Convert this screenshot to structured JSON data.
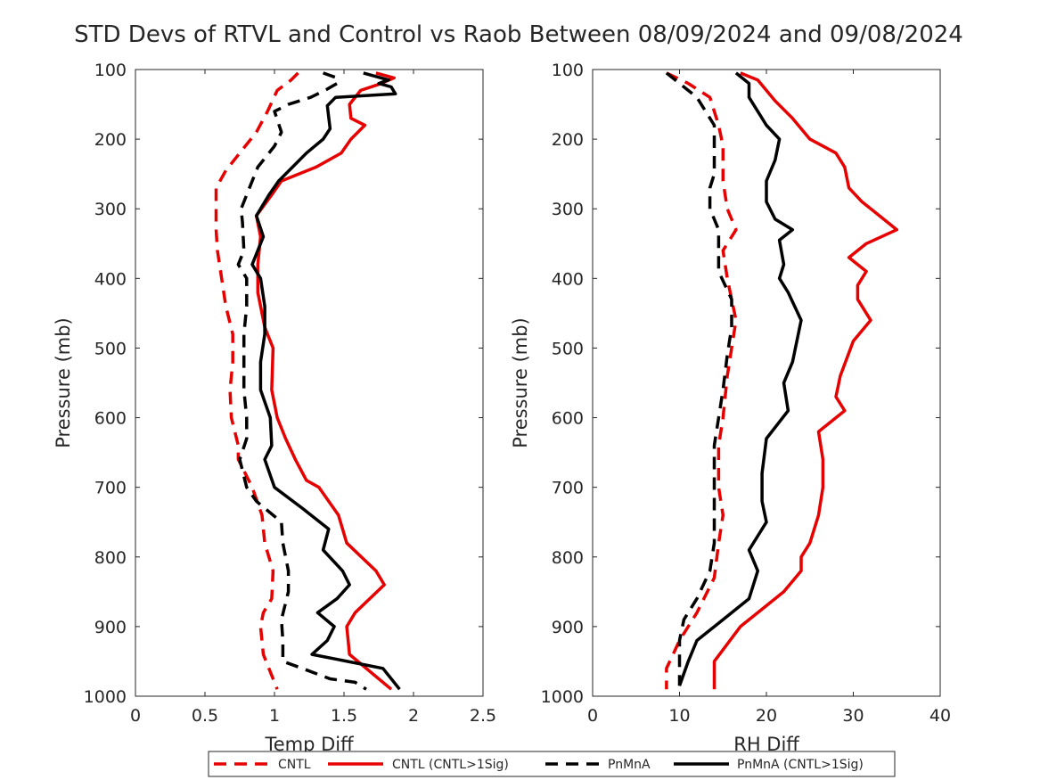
{
  "title": "STD Devs of RTVL and Control vs Raob Between 08/09/2024 and 09/08/2024",
  "legend": {
    "placement": "bottom",
    "entries": [
      {
        "label": "CNTL",
        "color": "#e60000",
        "dash": true
      },
      {
        "label": "CNTL (CNTL>1Sig)",
        "color": "#e60000",
        "dash": false
      },
      {
        "label": "PnMnA",
        "color": "#000000",
        "dash": true
      },
      {
        "label": "PnMnA (CNTL>1Sig)",
        "color": "#000000",
        "dash": false
      }
    ]
  },
  "chart_data": [
    {
      "type": "line",
      "xlabel": "Temp Diff",
      "ylabel": "Pressure (mb)",
      "xlim": [
        0,
        2.5
      ],
      "ylim": [
        100,
        1000
      ],
      "y_reversed": true,
      "grid": false,
      "xticks": [
        "0",
        "0.5",
        "1",
        "1.5",
        "2",
        "2.5"
      ],
      "xtick_values": [
        0,
        0.5,
        1,
        1.5,
        2,
        2.5
      ],
      "yticks": [
        "100",
        "200",
        "300",
        "400",
        "500",
        "600",
        "700",
        "800",
        "900",
        "1000"
      ],
      "ytick_values": [
        100,
        200,
        300,
        400,
        500,
        600,
        700,
        800,
        900,
        1000
      ],
      "series": [
        {
          "name": "CNTL",
          "color": "#e60000",
          "dash": true,
          "points": [
            [
              1.17,
              105
            ],
            [
              1.12,
              115
            ],
            [
              1.02,
              130
            ],
            [
              0.95,
              160
            ],
            [
              0.87,
              190
            ],
            [
              0.77,
              215
            ],
            [
              0.65,
              245
            ],
            [
              0.58,
              270
            ],
            [
              0.58,
              300
            ],
            [
              0.58,
              330
            ],
            [
              0.59,
              360
            ],
            [
              0.62,
              400
            ],
            [
              0.65,
              440
            ],
            [
              0.7,
              480
            ],
            [
              0.7,
              520
            ],
            [
              0.68,
              560
            ],
            [
              0.69,
              600
            ],
            [
              0.74,
              640
            ],
            [
              0.74,
              660
            ],
            [
              0.84,
              700
            ],
            [
              0.91,
              740
            ],
            [
              0.93,
              780
            ],
            [
              0.99,
              820
            ],
            [
              0.98,
              860
            ],
            [
              0.92,
              880
            ],
            [
              0.9,
              900
            ],
            [
              0.92,
              940
            ],
            [
              1.02,
              990
            ]
          ]
        },
        {
          "name": "CNTL (CNTL>1Sig)",
          "color": "#e60000",
          "dash": false,
          "points": [
            [
              1.73,
              105
            ],
            [
              1.86,
              112
            ],
            [
              1.74,
              122
            ],
            [
              1.62,
              130
            ],
            [
              1.54,
              150
            ],
            [
              1.55,
              170
            ],
            [
              1.65,
              180
            ],
            [
              1.55,
              200
            ],
            [
              1.48,
              220
            ],
            [
              1.3,
              240
            ],
            [
              1.05,
              260
            ],
            [
              0.98,
              280
            ],
            [
              0.87,
              310
            ],
            [
              0.9,
              340
            ],
            [
              0.88,
              380
            ],
            [
              0.88,
              420
            ],
            [
              0.93,
              470
            ],
            [
              0.99,
              500
            ],
            [
              0.98,
              560
            ],
            [
              1.02,
              600
            ],
            [
              1.08,
              630
            ],
            [
              1.15,
              660
            ],
            [
              1.23,
              690
            ],
            [
              1.32,
              700
            ],
            [
              1.46,
              740
            ],
            [
              1.52,
              780
            ],
            [
              1.73,
              820
            ],
            [
              1.79,
              840
            ],
            [
              1.58,
              880
            ],
            [
              1.52,
              900
            ],
            [
              1.54,
              940
            ],
            [
              1.84,
              990
            ]
          ]
        },
        {
          "name": "PnMnA",
          "color": "#000000",
          "dash": true,
          "points": [
            [
              1.35,
              105
            ],
            [
              1.45,
              112
            ],
            [
              1.45,
              120
            ],
            [
              1.38,
              128
            ],
            [
              1.26,
              140
            ],
            [
              1.1,
              150
            ],
            [
              1.0,
              160
            ],
            [
              1.05,
              190
            ],
            [
              1.0,
              210
            ],
            [
              0.88,
              240
            ],
            [
              0.82,
              270
            ],
            [
              0.76,
              300
            ],
            [
              0.77,
              320
            ],
            [
              0.78,
              360
            ],
            [
              0.74,
              380
            ],
            [
              0.8,
              400
            ],
            [
              0.8,
              440
            ],
            [
              0.78,
              480
            ],
            [
              0.78,
              520
            ],
            [
              0.78,
              560
            ],
            [
              0.8,
              600
            ],
            [
              0.8,
              630
            ],
            [
              0.75,
              660
            ],
            [
              0.8,
              700
            ],
            [
              0.87,
              720
            ],
            [
              1.05,
              750
            ],
            [
              1.06,
              780
            ],
            [
              1.1,
              820
            ],
            [
              1.1,
              850
            ],
            [
              1.05,
              890
            ],
            [
              1.06,
              920
            ],
            [
              1.06,
              950
            ],
            [
              1.2,
              960
            ],
            [
              1.4,
              975
            ],
            [
              1.58,
              980
            ],
            [
              1.66,
              990
            ]
          ]
        },
        {
          "name": "PnMnA (CNTL>1Sig)",
          "color": "#000000",
          "dash": false,
          "points": [
            [
              1.64,
              105
            ],
            [
              1.82,
              115
            ],
            [
              1.75,
              120
            ],
            [
              1.84,
              125
            ],
            [
              1.87,
              135
            ],
            [
              1.44,
              140
            ],
            [
              1.38,
              152
            ],
            [
              1.4,
              185
            ],
            [
              1.35,
              200
            ],
            [
              1.23,
              220
            ],
            [
              1.13,
              240
            ],
            [
              1.03,
              260
            ],
            [
              0.96,
              280
            ],
            [
              0.87,
              310
            ],
            [
              0.92,
              340
            ],
            [
              0.84,
              380
            ],
            [
              0.9,
              400
            ],
            [
              0.93,
              440
            ],
            [
              0.93,
              480
            ],
            [
              0.9,
              520
            ],
            [
              0.9,
              560
            ],
            [
              0.97,
              600
            ],
            [
              0.98,
              640
            ],
            [
              0.93,
              660
            ],
            [
              1.0,
              700
            ],
            [
              1.2,
              730
            ],
            [
              1.39,
              760
            ],
            [
              1.35,
              790
            ],
            [
              1.49,
              820
            ],
            [
              1.54,
              840
            ],
            [
              1.45,
              860
            ],
            [
              1.31,
              880
            ],
            [
              1.43,
              900
            ],
            [
              1.38,
              920
            ],
            [
              1.27,
              940
            ],
            [
              1.78,
              960
            ],
            [
              1.9,
              990
            ]
          ]
        }
      ]
    },
    {
      "type": "line",
      "xlabel": "RH Diff",
      "ylabel": "Pressure (mb)",
      "xlim": [
        0,
        40
      ],
      "ylim": [
        100,
        1000
      ],
      "y_reversed": true,
      "grid": false,
      "xticks": [
        "0",
        "10",
        "20",
        "30",
        "40"
      ],
      "xtick_values": [
        0,
        10,
        20,
        30,
        40
      ],
      "yticks": [
        "100",
        "200",
        "300",
        "400",
        "500",
        "600",
        "700",
        "800",
        "900",
        "1000"
      ],
      "ytick_values": [
        100,
        200,
        300,
        400,
        500,
        600,
        700,
        800,
        900,
        1000
      ],
      "series": [
        {
          "name": "CNTL",
          "color": "#e60000",
          "dash": true,
          "points": [
            [
              8.5,
              105
            ],
            [
              11,
              120
            ],
            [
              13.5,
              140
            ],
            [
              14,
              160
            ],
            [
              14.5,
              180
            ],
            [
              15,
              210
            ],
            [
              15,
              260
            ],
            [
              15.5,
              300
            ],
            [
              16.5,
              330
            ],
            [
              15,
              360
            ],
            [
              15.5,
              400
            ],
            [
              16.5,
              460
            ],
            [
              16,
              500
            ],
            [
              15.5,
              540
            ],
            [
              15,
              600
            ],
            [
              14.5,
              640
            ],
            [
              14.5,
              700
            ],
            [
              15,
              740
            ],
            [
              14.5,
              780
            ],
            [
              14,
              830
            ],
            [
              12,
              880
            ],
            [
              10,
              920
            ],
            [
              8.5,
              960
            ],
            [
              8.5,
              990
            ]
          ]
        },
        {
          "name": "CNTL (CNTL>1Sig)",
          "color": "#e60000",
          "dash": false,
          "points": [
            [
              17,
              105
            ],
            [
              19,
              115
            ],
            [
              20,
              130
            ],
            [
              21,
              145
            ],
            [
              23,
              170
            ],
            [
              25,
              200
            ],
            [
              28,
              220
            ],
            [
              29,
              240
            ],
            [
              29.5,
              270
            ],
            [
              31,
              290
            ],
            [
              33,
              310
            ],
            [
              35,
              330
            ],
            [
              31.5,
              350
            ],
            [
              29.5,
              370
            ],
            [
              31.5,
              390
            ],
            [
              30.5,
              410
            ],
            [
              30.5,
              430
            ],
            [
              32,
              460
            ],
            [
              30,
              490
            ],
            [
              28.5,
              540
            ],
            [
              28,
              570
            ],
            [
              29,
              590
            ],
            [
              26,
              620
            ],
            [
              26.5,
              660
            ],
            [
              26.5,
              700
            ],
            [
              26,
              740
            ],
            [
              25,
              780
            ],
            [
              24,
              800
            ],
            [
              24,
              820
            ],
            [
              22,
              850
            ],
            [
              19,
              880
            ],
            [
              17,
              900
            ],
            [
              14,
              950
            ],
            [
              14,
              990
            ]
          ]
        },
        {
          "name": "PnMnA",
          "color": "#000000",
          "dash": true,
          "points": [
            [
              8.5,
              105
            ],
            [
              10,
              120
            ],
            [
              12,
              140
            ],
            [
              13,
              160
            ],
            [
              14,
              180
            ],
            [
              14,
              210
            ],
            [
              14,
              250
            ],
            [
              13.5,
              270
            ],
            [
              13.5,
              300
            ],
            [
              14.5,
              330
            ],
            [
              14.5,
              360
            ],
            [
              14.5,
              390
            ],
            [
              16,
              430
            ],
            [
              16,
              470
            ],
            [
              15.5,
              510
            ],
            [
              15,
              560
            ],
            [
              14.5,
              600
            ],
            [
              14,
              640
            ],
            [
              14,
              700
            ],
            [
              14,
              740
            ],
            [
              14,
              780
            ],
            [
              13.5,
              820
            ],
            [
              12,
              860
            ],
            [
              10.5,
              890
            ],
            [
              10,
              920
            ],
            [
              10,
              960
            ],
            [
              10,
              985
            ]
          ]
        },
        {
          "name": "PnMnA (CNTL>1Sig)",
          "color": "#000000",
          "dash": false,
          "points": [
            [
              16.5,
              105
            ],
            [
              18,
              120
            ],
            [
              18,
              140
            ],
            [
              19,
              160
            ],
            [
              20,
              180
            ],
            [
              21.5,
              200
            ],
            [
              21,
              230
            ],
            [
              20,
              260
            ],
            [
              20,
              290
            ],
            [
              21,
              315
            ],
            [
              23,
              330
            ],
            [
              21.5,
              345
            ],
            [
              22,
              380
            ],
            [
              21.5,
              400
            ],
            [
              22.5,
              420
            ],
            [
              24,
              460
            ],
            [
              23,
              520
            ],
            [
              22,
              550
            ],
            [
              22.5,
              590
            ],
            [
              20,
              630
            ],
            [
              19.5,
              680
            ],
            [
              19.5,
              720
            ],
            [
              20,
              750
            ],
            [
              18,
              790
            ],
            [
              19,
              820
            ],
            [
              18,
              860
            ],
            [
              15,
              890
            ],
            [
              12,
              920
            ],
            [
              11,
              950
            ],
            [
              10,
              985
            ]
          ]
        }
      ]
    }
  ]
}
